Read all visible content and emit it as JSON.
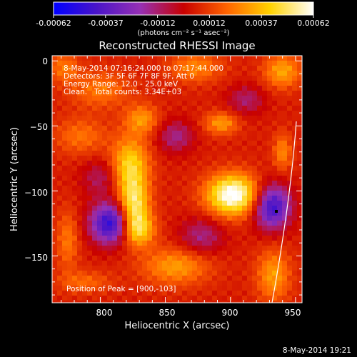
{
  "colorbar": {
    "ticks": [
      "-0.00062",
      "-0.00037",
      "-0.00012",
      "0.00012",
      "0.00037",
      "0.00062"
    ],
    "tick_values": [
      -0.00062,
      -0.00037,
      -0.00012,
      0.00012,
      0.00037,
      0.00062
    ],
    "units": "(photons cm⁻² s⁻¹ asec⁻²)",
    "colormap": [
      "#0000ff",
      "#4a14c8",
      "#9630b4",
      "#c80000",
      "#ff6400",
      "#ffd200",
      "#ffffff"
    ]
  },
  "chart_data": {
    "type": "heatmap",
    "title": "Reconstructed RHESSI Image",
    "xlabel": "Heliocentric X (arcsec)",
    "ylabel": "Heliocentric Y (arcsec)",
    "xlim": [
      763,
      955
    ],
    "ylim": [
      -186,
      4
    ],
    "xticks": [
      800,
      850,
      900,
      950
    ],
    "yticks": [
      0,
      -50,
      -100,
      -150
    ],
    "annotations": [
      "8-May-2014 07:16:24.000 to 07:17:44.000",
      "Detectors: 3F 5F 6F 7F 8F 9F, Att 0",
      "Energy Range: 12.0 - 25.0 keV",
      "Clean.   Total counts: 3.34E+03"
    ],
    "peak_label": "Position of Peak = [900,-103]",
    "peak": [
      900,
      -103
    ],
    "limb_marker": [
      933,
      -115
    ],
    "sources": [
      {
        "x": 902,
        "y": -103,
        "sx": 14,
        "sy": 11,
        "amp": 1.0
      },
      {
        "x": 826,
        "y": -111,
        "sx": 8,
        "sy": 14,
        "amp": 0.72
      },
      {
        "x": 823,
        "y": -80,
        "sx": 10,
        "sy": 15,
        "amp": 0.62
      },
      {
        "x": 829,
        "y": -130,
        "sx": 9,
        "sy": 9,
        "amp": 0.58
      },
      {
        "x": 832,
        "y": -45,
        "sx": 9,
        "sy": 8,
        "amp": 0.4
      },
      {
        "x": 893,
        "y": -48,
        "sx": 9,
        "sy": 6,
        "amp": 0.42
      },
      {
        "x": 873,
        "y": -5,
        "sx": 14,
        "sy": 8,
        "amp": 0.35
      },
      {
        "x": 940,
        "y": -8,
        "sx": 10,
        "sy": 9,
        "amp": 0.45
      },
      {
        "x": 858,
        "y": -158,
        "sx": 18,
        "sy": 10,
        "amp": 0.42
      },
      {
        "x": 933,
        "y": -165,
        "sx": 9,
        "sy": 14,
        "amp": 0.42
      },
      {
        "x": 940,
        "y": -70,
        "sx": 5,
        "sy": 10,
        "amp": 0.35
      },
      {
        "x": 800,
        "y": -22,
        "sx": 16,
        "sy": 10,
        "amp": 0.3
      },
      {
        "x": 785,
        "y": -58,
        "sx": 14,
        "sy": 10,
        "amp": 0.28
      },
      {
        "x": 775,
        "y": -138,
        "sx": 6,
        "sy": 16,
        "amp": 0.3
      },
      {
        "x": 772,
        "y": -5,
        "sx": 8,
        "sy": 8,
        "amp": 0.3
      },
      {
        "x": 788,
        "y": -170,
        "sx": 14,
        "sy": 6,
        "amp": 0.25
      },
      {
        "x": 808,
        "y": -125,
        "sx": 11,
        "sy": 11,
        "amp": -0.9
      },
      {
        "x": 932,
        "y": -112,
        "sx": 10,
        "sy": 12,
        "amp": -0.85
      },
      {
        "x": 858,
        "y": -58,
        "sx": 10,
        "sy": 9,
        "amp": -0.35
      },
      {
        "x": 878,
        "y": -135,
        "sx": 12,
        "sy": 10,
        "amp": -0.35
      },
      {
        "x": 800,
        "y": -90,
        "sx": 10,
        "sy": 10,
        "amp": -0.28
      },
      {
        "x": 912,
        "y": -30,
        "sx": 10,
        "sy": 8,
        "amp": -0.3
      }
    ],
    "background_level": 0.12
  },
  "footer": {
    "timestamp": "8-May-2014 19:21"
  }
}
